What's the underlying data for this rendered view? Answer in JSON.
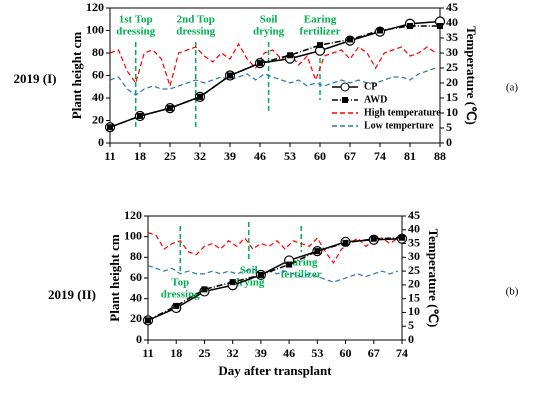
{
  "chart_data": [
    {
      "type": "line",
      "title": "2019 (I)",
      "panel_label": "(a)",
      "y_label": "Plant height cm",
      "y2_label": "Temperature (℃)",
      "xlim": [
        11,
        88
      ],
      "xticks": [
        11,
        18,
        25,
        32,
        39,
        46,
        53,
        60,
        67,
        74,
        81,
        88
      ],
      "ylim": [
        0,
        120
      ],
      "yticks": [
        0,
        20,
        40,
        60,
        80,
        100,
        120
      ],
      "y2lim": [
        0,
        45
      ],
      "y2ticks": [
        0,
        5,
        10,
        15,
        20,
        25,
        30,
        35,
        40,
        45
      ],
      "legend": "lower right",
      "annotations": [
        {
          "lines": [
            "1st Top",
            "dressing"
          ],
          "x": 17,
          "color": "#00b050"
        },
        {
          "lines": [
            "2nd Top",
            "dressing"
          ],
          "x": 31,
          "color": "#00b050"
        },
        {
          "lines": [
            "Soil",
            "drying"
          ],
          "x": 48,
          "color": "#00b050"
        },
        {
          "lines": [
            "Earing",
            "fertilizer"
          ],
          "x": 60,
          "color": "#00b050"
        }
      ],
      "series": [
        {
          "name": "CP",
          "color": "#000000",
          "style": "solid",
          "marker": "open-circle",
          "x": [
            11,
            18,
            25,
            32,
            39,
            46,
            53,
            60,
            67,
            74,
            81,
            88
          ],
          "values": [
            14,
            24,
            31,
            41,
            60,
            71,
            75,
            82,
            91,
            99,
            106,
            108
          ]
        },
        {
          "name": "AWD",
          "color": "#000000",
          "style": "dashdot",
          "marker": "square",
          "x": [
            11,
            18,
            25,
            32,
            39,
            46,
            53,
            60,
            67,
            74,
            81,
            88
          ],
          "values": [
            14,
            24,
            31,
            41,
            60,
            71,
            78,
            87,
            92,
            100,
            104,
            104
          ]
        },
        {
          "name": "High temperature",
          "color": "#ff0000",
          "style": "dashed",
          "axis": "y2",
          "x": [
            11,
            13,
            15,
            17,
            19,
            21,
            23,
            25,
            27,
            29,
            31,
            33,
            35,
            37,
            39,
            41,
            43,
            45,
            47,
            49,
            51,
            53,
            55,
            57,
            59,
            61,
            63,
            65,
            67,
            69,
            71,
            73,
            75,
            77,
            79,
            81,
            83,
            85,
            87
          ],
          "values": [
            30,
            31,
            24,
            20,
            30,
            31,
            28,
            19,
            30,
            31,
            32,
            29,
            27,
            30,
            28,
            33,
            28,
            25,
            30,
            31,
            28,
            30,
            26,
            29,
            21,
            29,
            30,
            31,
            28,
            32,
            30,
            25,
            30,
            31,
            32,
            29,
            30,
            32,
            30
          ]
        },
        {
          "name": "Low temperture",
          "color": "#2e75b6",
          "style": "dashed",
          "axis": "y2",
          "x": [
            11,
            13,
            15,
            17,
            19,
            21,
            23,
            25,
            27,
            29,
            31,
            33,
            35,
            37,
            39,
            41,
            43,
            45,
            47,
            49,
            51,
            53,
            55,
            57,
            59,
            61,
            63,
            65,
            67,
            69,
            71,
            73,
            75,
            77,
            79,
            81,
            83,
            85,
            87
          ],
          "values": [
            21,
            22,
            18,
            16,
            18,
            19,
            18,
            18,
            19,
            20,
            21,
            20,
            21,
            22,
            21,
            22,
            23,
            21,
            23,
            22,
            21,
            20,
            21,
            19,
            20,
            19,
            20,
            21,
            20,
            21,
            20,
            20,
            21,
            22,
            22,
            21,
            23,
            24,
            25
          ]
        }
      ]
    },
    {
      "type": "line",
      "title": "2019 (II)",
      "panel_label": "(b)",
      "y_label": "Plant height cm",
      "y2_label": "Temperature (℃)",
      "x_label": "Day after transplant",
      "xlim": [
        11,
        74
      ],
      "xticks": [
        11,
        18,
        25,
        32,
        39,
        46,
        53,
        60,
        67,
        74
      ],
      "ylim": [
        0,
        120
      ],
      "yticks": [
        0,
        20,
        40,
        60,
        80,
        100,
        120
      ],
      "y2lim": [
        0,
        45
      ],
      "y2ticks": [
        0,
        5,
        10,
        15,
        20,
        25,
        30,
        35,
        40,
        45
      ],
      "annotations": [
        {
          "lines": [
            "Top",
            "dressing"
          ],
          "x": 19,
          "color": "#00b050"
        },
        {
          "lines": [
            "Soil",
            "drying"
          ],
          "x": 36,
          "color": "#00b050"
        },
        {
          "lines": [
            "Earing",
            "fertilizer"
          ],
          "x": 49,
          "color": "#00b050"
        }
      ],
      "series": [
        {
          "name": "CP",
          "color": "#000000",
          "style": "solid",
          "marker": "open-circle",
          "x": [
            11,
            18,
            25,
            32,
            39,
            46,
            53,
            60,
            67,
            74
          ],
          "values": [
            19,
            31,
            47,
            53,
            63,
            77,
            86,
            95,
            97,
            98
          ]
        },
        {
          "name": "AWD",
          "color": "#000000",
          "style": "dashdot",
          "marker": "square",
          "x": [
            11,
            18,
            25,
            32,
            39,
            46,
            53,
            60,
            67,
            74
          ],
          "values": [
            19,
            33,
            49,
            56,
            63,
            73,
            86,
            94,
            98,
            99
          ]
        },
        {
          "name": "High temperature",
          "color": "#ff0000",
          "style": "dashed",
          "axis": "y2",
          "x": [
            11,
            13,
            15,
            17,
            19,
            21,
            23,
            25,
            27,
            29,
            31,
            33,
            35,
            37,
            39,
            41,
            43,
            45,
            47,
            49,
            51,
            53,
            55,
            57,
            59,
            61,
            63,
            65,
            67,
            69,
            71,
            73
          ],
          "values": [
            39,
            38,
            33,
            35,
            36,
            32,
            31,
            34,
            35,
            33,
            36,
            34,
            37,
            33,
            35,
            34,
            36,
            33,
            36,
            35,
            34,
            37,
            32,
            28,
            33,
            35,
            37,
            34,
            36,
            37,
            35,
            37
          ]
        },
        {
          "name": "Low temperture",
          "color": "#2e75b6",
          "style": "dashed",
          "axis": "y2",
          "x": [
            11,
            13,
            15,
            17,
            19,
            21,
            23,
            25,
            27,
            29,
            31,
            33,
            35,
            37,
            39,
            41,
            43,
            45,
            47,
            49,
            51,
            53,
            55,
            57,
            59,
            61,
            63,
            65,
            67,
            69,
            71,
            73
          ],
          "values": [
            27,
            26,
            25,
            26,
            24,
            25,
            24,
            24,
            25,
            24,
            25,
            24,
            25,
            26,
            24,
            25,
            24,
            25,
            24,
            23,
            24,
            23,
            22,
            21,
            22,
            23,
            24,
            23,
            24,
            25,
            24,
            25
          ]
        }
      ]
    }
  ]
}
